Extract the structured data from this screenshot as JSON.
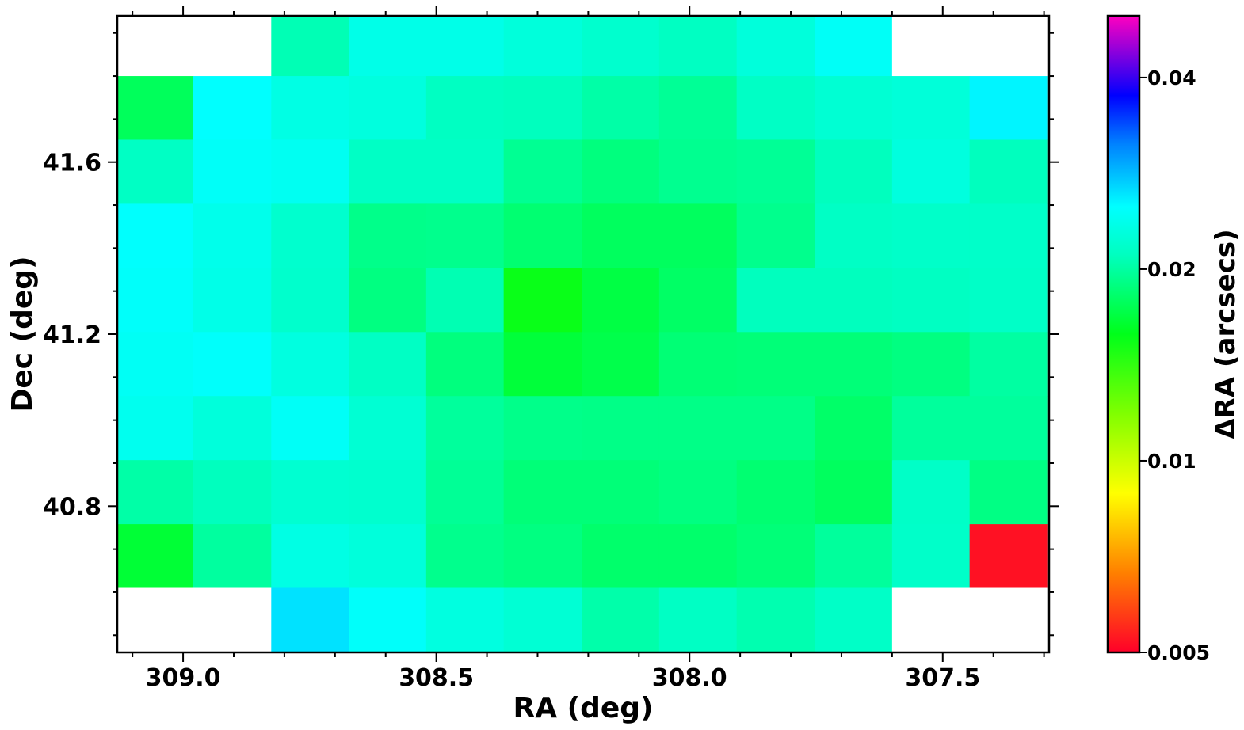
{
  "chart_data": {
    "type": "heatmap",
    "title": "",
    "xlabel": "RA (deg)",
    "ylabel": "Dec (deg)",
    "colorbar_label": "ΔRA (arcsecs)",
    "xlim": [
      309.13,
      307.29
    ],
    "ylim": [
      40.46,
      41.94
    ],
    "x_edges": [
      309.13,
      308.98,
      308.826,
      308.673,
      308.52,
      308.367,
      308.213,
      308.06,
      307.907,
      307.753,
      307.6,
      307.447,
      307.293
    ],
    "y_edges": [
      40.46,
      40.61,
      40.758,
      40.907,
      41.056,
      41.205,
      41.354,
      41.503,
      41.652,
      41.8,
      41.94
    ],
    "x_ticks": [
      309.0,
      308.5,
      308.0,
      307.5
    ],
    "x_tick_labels": [
      "309.0",
      "308.5",
      "308.0",
      "307.5"
    ],
    "y_ticks": [
      40.8,
      41.2,
      41.6
    ],
    "y_tick_labels": [
      "40.8",
      "41.2",
      "41.6"
    ],
    "colorbar_ticks": [
      0.005,
      0.01,
      0.02,
      0.04
    ],
    "colorbar_tick_labels": [
      "0.005",
      "0.01",
      "0.02",
      "0.04"
    ],
    "colorbar_range": [
      0.005,
      0.05
    ],
    "colorbar_scale": "log",
    "colormap": "gist_rainbow",
    "missing_value_color": "#ffffff",
    "values_note": "rows listed top (highest Dec) to bottom; null = no data",
    "values": [
      [
        null,
        null,
        0.0207,
        0.0235,
        0.0235,
        0.0227,
        0.0219,
        0.0212,
        0.0227,
        0.0245,
        null,
        null
      ],
      [
        0.0177,
        0.025,
        0.0233,
        0.0229,
        0.0212,
        0.021,
        0.0202,
        0.0196,
        0.0214,
        0.0222,
        0.0226,
        0.0255
      ],
      [
        0.0213,
        0.0246,
        0.0242,
        0.0214,
        0.0214,
        0.0195,
        0.0188,
        0.0194,
        0.0196,
        0.021,
        0.0229,
        0.021
      ],
      [
        0.0249,
        0.0237,
        0.0219,
        0.0192,
        0.0193,
        0.0184,
        0.0178,
        0.0178,
        0.0193,
        0.0214,
        0.0216,
        0.0216
      ],
      [
        0.0247,
        0.0235,
        0.0218,
        0.0189,
        0.0206,
        0.0155,
        0.017,
        0.018,
        0.021,
        0.021,
        0.0212,
        0.0215
      ],
      [
        0.0244,
        0.0248,
        0.023,
        0.0213,
        0.0188,
        0.0167,
        0.0172,
        0.0185,
        0.0186,
        0.0186,
        0.0189,
        0.02
      ],
      [
        0.024,
        0.0227,
        0.0245,
        0.0222,
        0.0198,
        0.0192,
        0.0191,
        0.0191,
        0.0191,
        0.0181,
        0.0198,
        0.0198
      ],
      [
        0.0202,
        0.021,
        0.0221,
        0.0219,
        0.0196,
        0.0186,
        0.0186,
        0.0189,
        0.0184,
        0.0178,
        0.0215,
        0.019
      ],
      [
        0.0166,
        0.0199,
        0.0233,
        0.0227,
        0.0193,
        0.0189,
        0.0182,
        0.0182,
        0.0186,
        0.0198,
        0.0216,
        0.0052
      ],
      [
        null,
        null,
        0.0264,
        0.0247,
        0.023,
        0.0223,
        0.0203,
        0.0213,
        0.0205,
        0.0215,
        null,
        null
      ]
    ]
  }
}
